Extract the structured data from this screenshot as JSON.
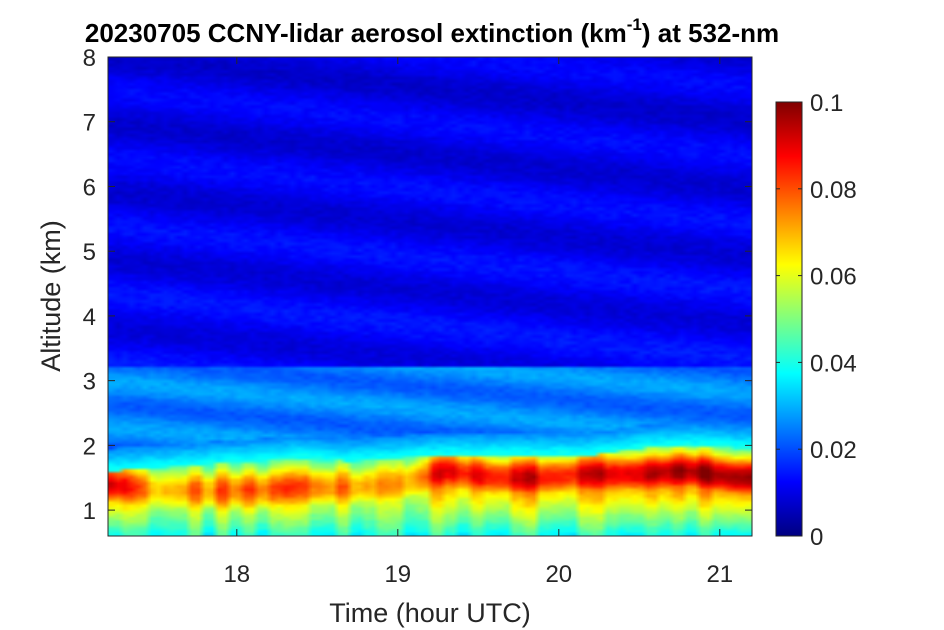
{
  "chart_data": {
    "type": "heatmap",
    "title_main": "20230705 CCNY-lidar aerosol extinction (km",
    "title_sup": "-1",
    "title_tail": ") at 532-nm",
    "xlabel": "Time (hour UTC)",
    "ylabel": "Altitude (km)",
    "xlim": [
      17.2,
      21.2
    ],
    "ylim": [
      0.6,
      8
    ],
    "xticks": [
      18,
      19,
      20,
      21
    ],
    "yticks": [
      1,
      2,
      3,
      4,
      5,
      6,
      7,
      8
    ],
    "colorbar": {
      "colormap": "jet",
      "range": [
        0,
        0.1
      ],
      "ticks": [
        0,
        0.02,
        0.04,
        0.06,
        0.08,
        0.1
      ],
      "tick_labels": [
        "0",
        "0.02",
        "0.04",
        "0.06",
        "0.08",
        "0.1"
      ]
    },
    "time_hours": [
      17.2,
      17.5,
      17.8,
      18.1,
      18.4,
      18.7,
      19.0,
      19.3,
      19.6,
      19.9,
      20.2,
      20.5,
      20.8,
      21.1
    ],
    "layer_top_km": [
      1.6,
      1.65,
      1.7,
      1.75,
      1.8,
      1.75,
      1.8,
      1.85,
      1.85,
      1.85,
      1.85,
      1.95,
      2.0,
      1.95
    ],
    "peak_extinction": [
      0.095,
      0.07,
      0.075,
      0.08,
      0.08,
      0.075,
      0.07,
      0.09,
      0.09,
      0.09,
      0.09,
      0.095,
      0.1,
      0.1
    ],
    "peak_altitude_km": [
      1.4,
      1.3,
      1.3,
      1.3,
      1.35,
      1.35,
      1.4,
      1.6,
      1.5,
      1.5,
      1.55,
      1.55,
      1.6,
      1.5
    ],
    "residual_layer_extinction": 0.025,
    "residual_layer_top_km": 3.2,
    "free_troposphere_extinction": 0.012
  }
}
